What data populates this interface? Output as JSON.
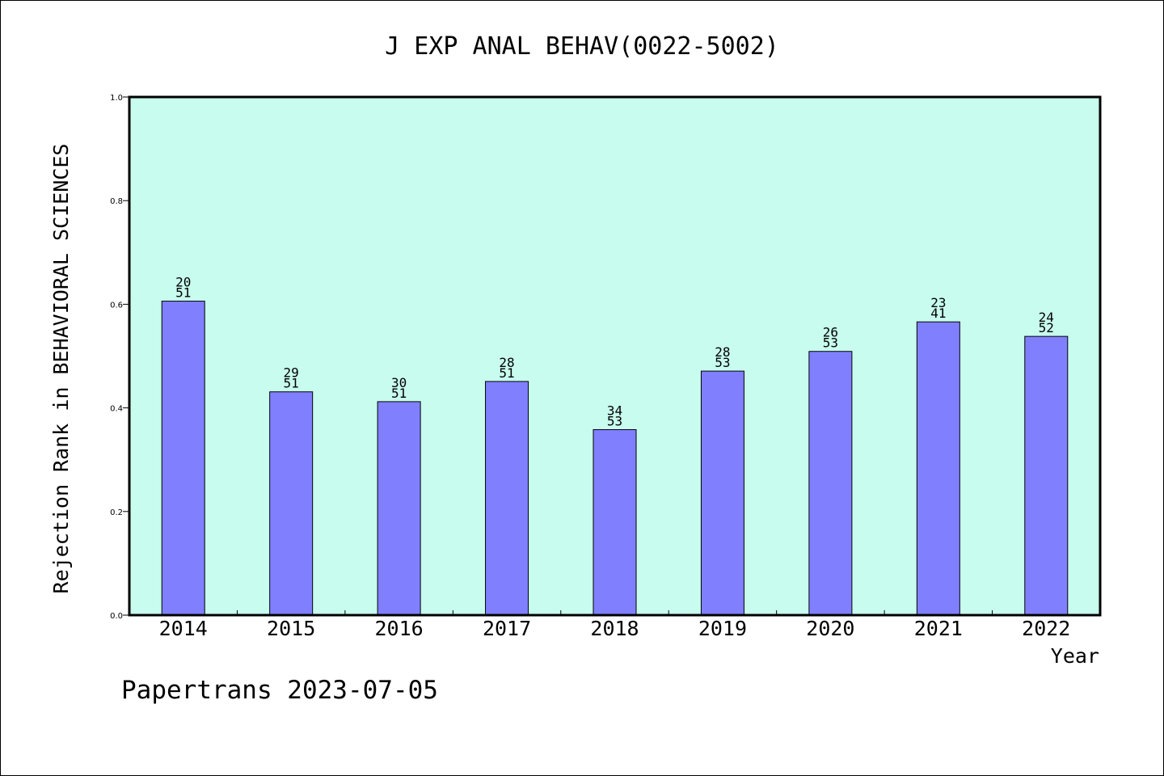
{
  "footer": {
    "text": "Papertrans 2023-07-05"
  },
  "colors": {
    "plot_bg": "#c8fcee",
    "bar_fill": "#8080ff",
    "bar_stroke": "#000000"
  },
  "chart_data": {
    "type": "bar",
    "title": "J EXP ANAL BEHAV(0022-5002)",
    "xlabel": "Year",
    "ylabel": "Rejection Rank in BEHAVIORAL SCIENCES",
    "ylim": [
      0,
      1.0
    ],
    "yticks": [
      "0.0",
      "0.2",
      "0.4",
      "0.6",
      "0.8",
      "1.0"
    ],
    "grid": false,
    "categories": [
      "2014",
      "2015",
      "2016",
      "2017",
      "2018",
      "2019",
      "2020",
      "2021",
      "2022"
    ],
    "values": [
      0.606,
      0.431,
      0.412,
      0.451,
      0.358,
      0.471,
      0.509,
      0.566,
      0.538
    ],
    "label_top": [
      "20",
      "29",
      "30",
      "28",
      "34",
      "28",
      "26",
      "23",
      "24"
    ],
    "label_bottom": [
      "51",
      "51",
      "51",
      "51",
      "53",
      "53",
      "53",
      "41",
      "52"
    ]
  }
}
